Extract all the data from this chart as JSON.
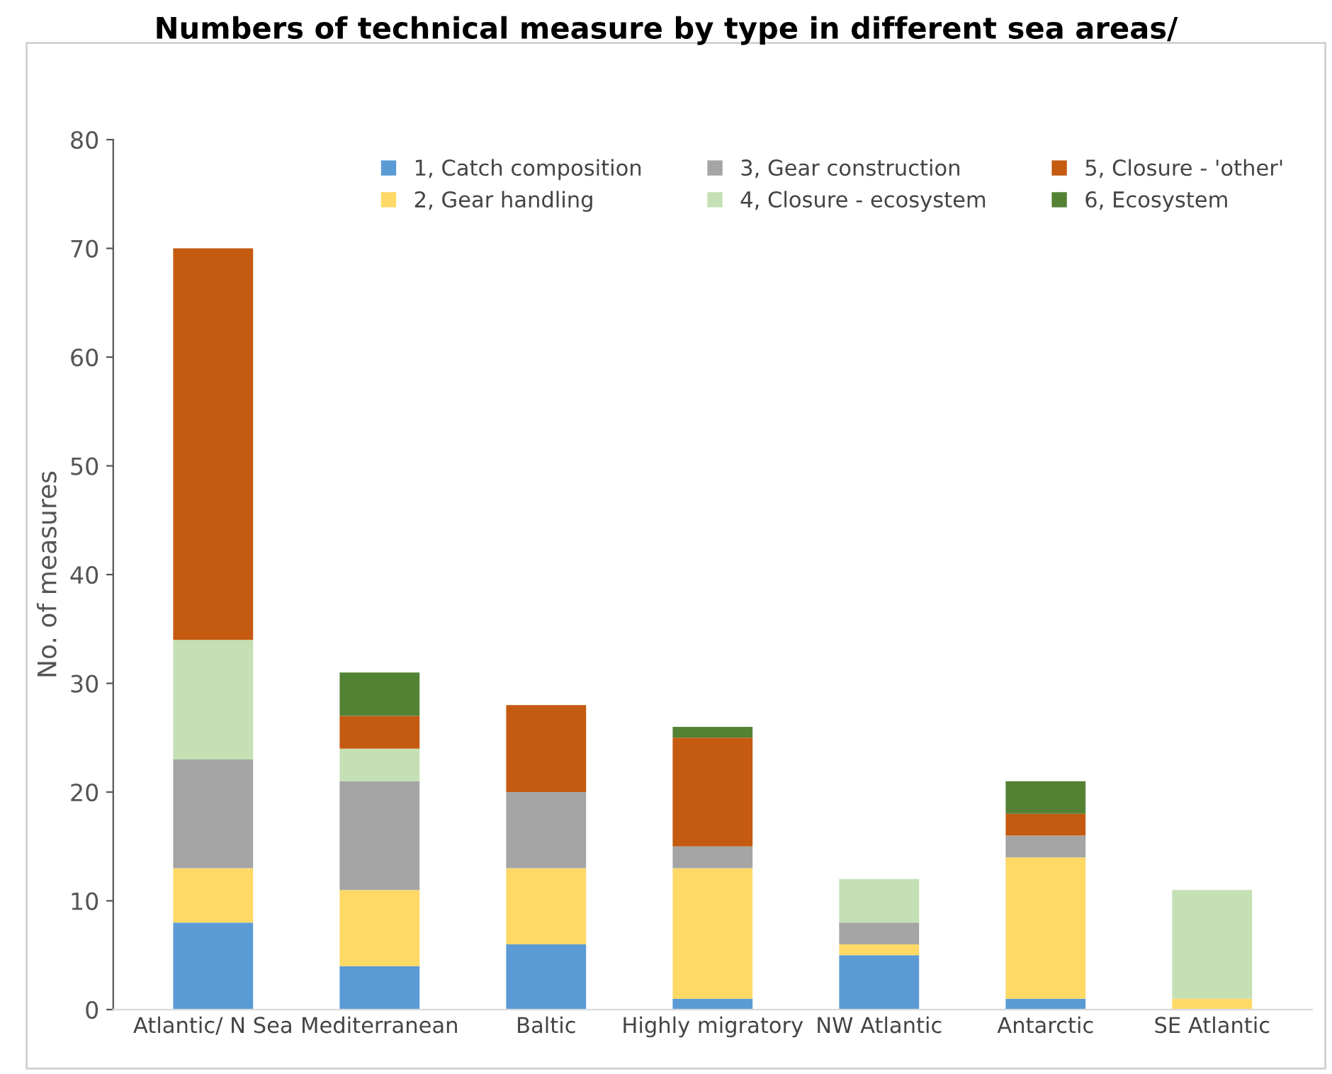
{
  "chart_data": {
    "type": "bar",
    "stacked": true,
    "title": "Numbers of technical measure by type in different sea areas/",
    "ylabel": "No. of measures",
    "categories": [
      "Atlantic/ N Sea",
      "Mediterranean",
      "Baltic",
      "Highly migratory",
      "NW Atlantic",
      "Antarctic",
      "SE Atlantic"
    ],
    "series": [
      {
        "name": "1, Catch composition",
        "color": "#5b9bd5",
        "values": [
          8,
          4,
          6,
          1,
          5,
          1,
          0
        ]
      },
      {
        "name": "2, Gear handling",
        "color": "#ffd966",
        "values": [
          5,
          7,
          7,
          12,
          1,
          13,
          1
        ]
      },
      {
        "name": "3, Gear construction",
        "color": "#a5a5a5",
        "values": [
          10,
          10,
          7,
          2,
          2,
          2,
          0
        ]
      },
      {
        "name": "4, Closure - ecosystem",
        "color": "#c5e0b4",
        "values": [
          11,
          3,
          0,
          0,
          4,
          0,
          10
        ]
      },
      {
        "name": "5, Closure - 'other'",
        "color": "#c55a11",
        "values": [
          36,
          3,
          8,
          10,
          0,
          2,
          0
        ]
      },
      {
        "name": "6, Ecosystem",
        "color": "#548235",
        "values": [
          0,
          4,
          0,
          1,
          0,
          3,
          0
        ]
      }
    ],
    "ylim": [
      0,
      80
    ],
    "yticks": [
      0,
      10,
      20,
      30,
      40,
      50,
      60,
      70,
      80
    ],
    "grid": false,
    "legend": "top"
  }
}
